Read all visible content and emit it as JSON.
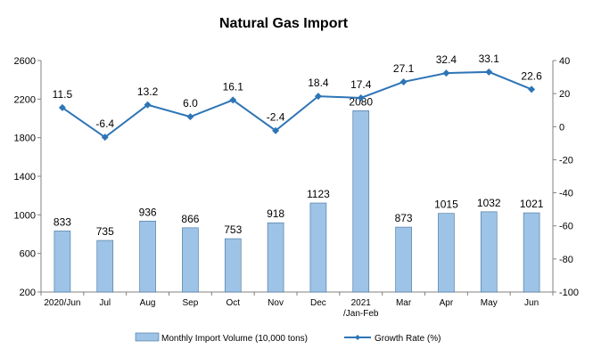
{
  "chart_data": {
    "type": "bar+line",
    "title": "Natural Gas Import",
    "categories": [
      "2020/Jun",
      "Jul",
      "Aug",
      "Sep",
      "Oct",
      "Nov",
      "Dec",
      "2021\n/Jan-Feb",
      "Mar",
      "Apr",
      "May",
      "Jun"
    ],
    "series": [
      {
        "name": "Monthly Import Volume (10,000 tons)",
        "type": "bar",
        "axis": "left",
        "values": [
          833,
          735,
          936,
          866,
          753,
          918,
          1123,
          2080,
          873,
          1015,
          1032,
          1021
        ],
        "color": "#9dc3e6"
      },
      {
        "name": "Growth Rate (%)",
        "type": "line",
        "axis": "right",
        "values": [
          11.5,
          -6.4,
          13.2,
          6.0,
          16.1,
          -2.4,
          18.4,
          17.4,
          27.1,
          32.4,
          33.1,
          22.6
        ],
        "color": "#2e75b6"
      }
    ],
    "y_left": {
      "min": 200,
      "max": 2600,
      "ticks": [
        200,
        600,
        1000,
        1400,
        1800,
        2200,
        2600
      ]
    },
    "y_right": {
      "min": -100,
      "max": 40,
      "ticks": [
        -100,
        -80,
        -60,
        -40,
        -20,
        0,
        20,
        40
      ]
    },
    "bar_labels": [
      "833",
      "735",
      "936",
      "866",
      "753",
      "918",
      "1123",
      "2080",
      "873",
      "1015",
      "1032",
      "1021"
    ],
    "line_labels": [
      "11.5",
      "-6.4",
      "13.2",
      "6.0",
      "16.1",
      "-2.4",
      "18.4",
      "17.4",
      "27.1",
      "32.4",
      "33.1",
      "22.6"
    ],
    "legend_position": "bottom",
    "grid": false
  }
}
